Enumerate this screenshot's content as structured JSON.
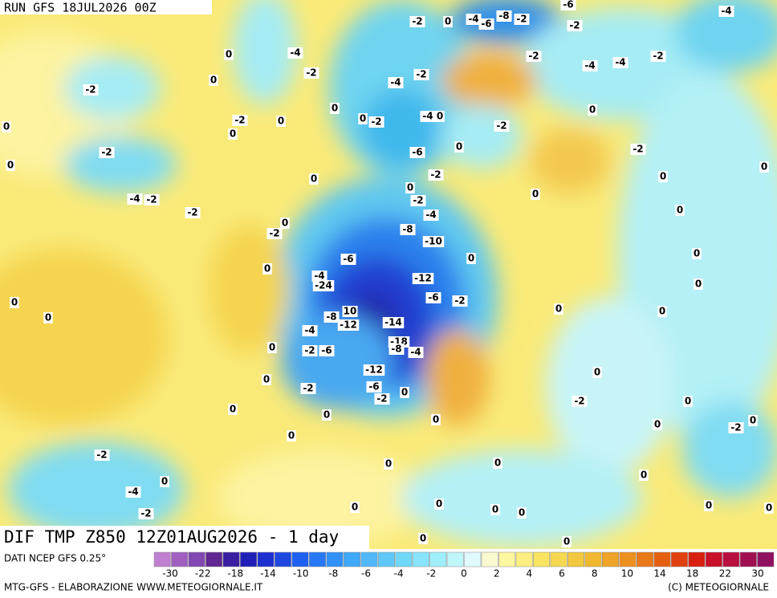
{
  "header": {
    "run": "RUN GFS 18JUL2026 00Z"
  },
  "map": {
    "title": "DIF TMP Z850 12Z01AUG2026 - 1 day",
    "contour_labels": [
      "-2",
      "0",
      "-4",
      "-6",
      "-8",
      "-2",
      "-6",
      "-2",
      "-4",
      "-4",
      "0",
      "-2",
      "-2",
      "-4",
      "-4",
      "-2",
      "-2",
      "0",
      "-4",
      "-2",
      "-2",
      "0",
      "0",
      "0",
      "-2",
      "-4",
      "0",
      "0",
      "-2",
      "0",
      "0",
      "-6",
      "0",
      "-2",
      "-2",
      "0",
      "0",
      "-2",
      "0",
      "0",
      "-4",
      "-2",
      "0",
      "-2",
      "0",
      "-2",
      "-4",
      "0",
      "0",
      "-2",
      "-8",
      "-10",
      "-6",
      "0",
      "0",
      "0",
      "-4",
      "-24",
      "-12",
      "0",
      "0",
      "-6",
      "-2",
      "0",
      "-8",
      "10",
      "-12",
      "-14",
      "0",
      "0",
      "-4",
      "0",
      "-2",
      "-6",
      "-18",
      "-8",
      "-4",
      "-12",
      "-6",
      "0",
      "0",
      "-2",
      "-2",
      "0",
      "-2",
      "0",
      "0",
      "0",
      "0",
      "0",
      "0",
      "-2",
      "0",
      "-2",
      "0",
      "0",
      "0",
      "0",
      "-4",
      "-2",
      "0",
      "0",
      "0",
      "0",
      "0",
      "0",
      "0",
      "0"
    ]
  },
  "footer": {
    "source": "DATI NCEP GFS 0.25°",
    "credit": "MTG-GFS - ELABORAZIONE WWW.METEOGIORNALE.IT",
    "copyright": "(C) METEOGIORNALE"
  },
  "colorbar": {
    "colors": [
      "#c080d0",
      "#a060c0",
      "#8048b0",
      "#602890",
      "#3a1fa0",
      "#2020b8",
      "#1f30d0",
      "#1f48e0",
      "#2060f0",
      "#2878f5",
      "#3090f8",
      "#40a8f8",
      "#50b8f8",
      "#60c8f8",
      "#70d8f8",
      "#88e4fa",
      "#a0eefa",
      "#c0f6fa",
      "#e0fafc",
      "#fafad0",
      "#fdf6a0",
      "#fcee80",
      "#f8e460",
      "#f5d850",
      "#f2c840",
      "#f0b830",
      "#eea428",
      "#ec9020",
      "#e87818",
      "#e46010",
      "#e04010",
      "#d82010",
      "#c81028",
      "#b81040",
      "#a01050",
      "#901060"
    ],
    "ticks": [
      "-30",
      "-22",
      "-18",
      "-14",
      "-10",
      "-8",
      "-6",
      "-4",
      "-2",
      "0",
      "2",
      "4",
      "6",
      "8",
      "10",
      "14",
      "18",
      "22",
      "30"
    ]
  }
}
